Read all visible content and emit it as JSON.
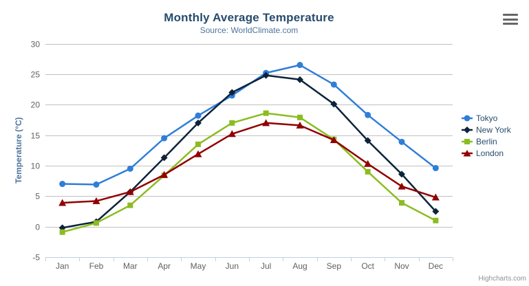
{
  "chart_data": {
    "type": "line",
    "title": "Monthly Average Temperature",
    "subtitle": "Source: WorldClimate.com",
    "xlabel": "",
    "ylabel": "Temperature (°C)",
    "categories": [
      "Jan",
      "Feb",
      "Mar",
      "Apr",
      "May",
      "Jun",
      "Jul",
      "Aug",
      "Sep",
      "Oct",
      "Nov",
      "Dec"
    ],
    "series": [
      {
        "name": "Tokyo",
        "color": "#2f7ed8",
        "marker": "circle",
        "values": [
          7.0,
          6.9,
          9.5,
          14.5,
          18.2,
          21.5,
          25.2,
          26.5,
          23.3,
          18.3,
          13.9,
          9.6
        ]
      },
      {
        "name": "New York",
        "color": "#0d233a",
        "marker": "diamond",
        "values": [
          -0.2,
          0.8,
          5.7,
          11.3,
          17.0,
          22.0,
          24.8,
          24.1,
          20.1,
          14.1,
          8.6,
          2.5
        ]
      },
      {
        "name": "Berlin",
        "color": "#8bbc21",
        "marker": "square",
        "values": [
          -0.9,
          0.6,
          3.5,
          8.4,
          13.5,
          17.0,
          18.6,
          17.9,
          14.3,
          9.0,
          3.9,
          1.0
        ]
      },
      {
        "name": "London",
        "color": "#910000",
        "marker": "triangle",
        "values": [
          3.9,
          4.2,
          5.7,
          8.5,
          11.9,
          15.2,
          17.0,
          16.6,
          14.2,
          10.3,
          6.6,
          4.8
        ]
      }
    ],
    "ylim": [
      -5,
      30
    ],
    "ytick_interval": 5,
    "grid": true,
    "legend_position": "right"
  },
  "export_menu": {
    "icon": "hamburger-menu"
  },
  "credits": {
    "label": "Highcharts.com"
  },
  "colors": {
    "title": "#274b6d",
    "subtitle": "#4d759e",
    "axis_title": "#4d759e",
    "tick_label": "#606060",
    "grid_line": "#c0c0c0",
    "axis_line": "#c0d0e0",
    "legend_text": "#274b6d",
    "credits_text": "#909090",
    "menu_icon": "#666666"
  }
}
